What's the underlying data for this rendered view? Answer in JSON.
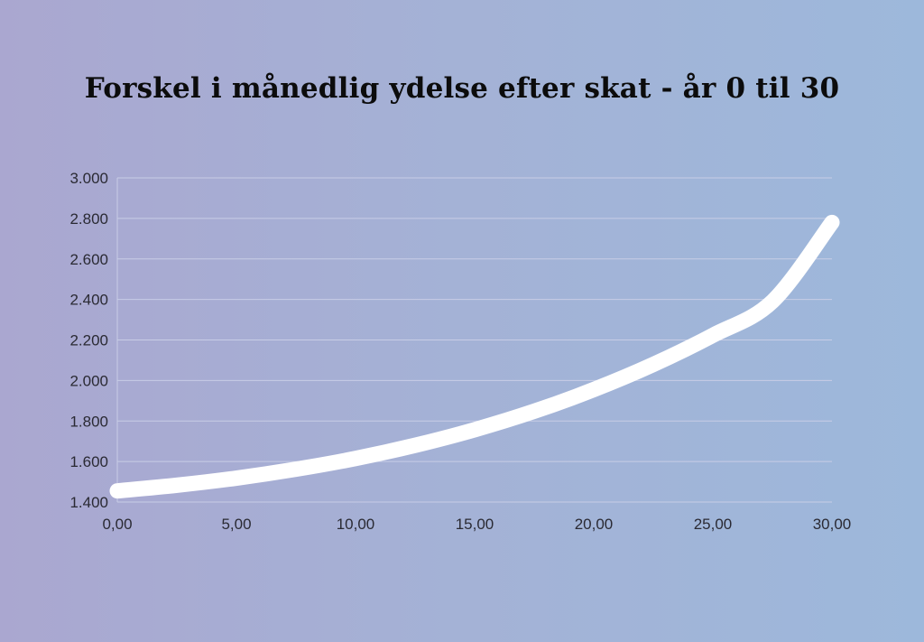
{
  "chart_data": {
    "type": "line",
    "title": "Forskel i månedlig ydelse efter skat - år 0 til 30",
    "xlabel": "",
    "ylabel": "",
    "xlim": [
      0,
      30
    ],
    "ylim": [
      1400,
      3000
    ],
    "x_ticks": [
      "0,00",
      "5,00",
      "10,00",
      "15,00",
      "20,00",
      "25,00",
      "30,00"
    ],
    "y_ticks": [
      "1.400",
      "1.600",
      "1.800",
      "2.000",
      "2.200",
      "2.400",
      "2.600",
      "2.800",
      "3.000"
    ],
    "grid": true,
    "line_color": "#ffffff",
    "grid_color": "#c8cde6",
    "series": [
      {
        "x": [
          0,
          2.5,
          5,
          7.5,
          10,
          12.5,
          15,
          17.5,
          20,
          22.5,
          25,
          27.5,
          30
        ],
        "values": [
          1455,
          1483,
          1518,
          1562,
          1615,
          1680,
          1757,
          1848,
          1955,
          2079,
          2223,
          2390,
          2780
        ]
      }
    ]
  }
}
